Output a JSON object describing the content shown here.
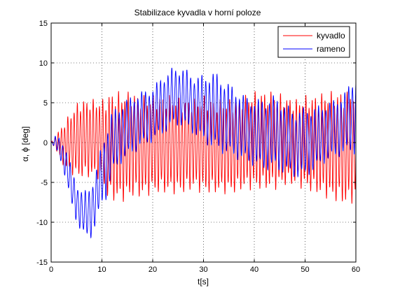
{
  "chart_data": {
    "type": "line",
    "title": "Stabilizace kyvadla v horní poloze",
    "xlabel": "t[s]",
    "ylabel": "α, ϕ [deg]",
    "xlim": [
      0,
      60
    ],
    "ylim": [
      -15,
      15
    ],
    "xticks": [
      0,
      10,
      20,
      30,
      40,
      50,
      60
    ],
    "yticks": [
      -15,
      -10,
      -5,
      0,
      5,
      10,
      15
    ],
    "grid": true,
    "legend_position": "top-right",
    "series": [
      {
        "name": "kyvadlo",
        "color": "#ff0000",
        "envelope": {
          "t": [
            0,
            1,
            2,
            3,
            4,
            5,
            6,
            7,
            8,
            9,
            10,
            11,
            12,
            14,
            16,
            18,
            20,
            22,
            24,
            26,
            28,
            30,
            32,
            34,
            36,
            38,
            40,
            42,
            44,
            46,
            48,
            50,
            52,
            54,
            56,
            58,
            60
          ],
          "upper": [
            0,
            1,
            2,
            3,
            4,
            5,
            5.5,
            5.5,
            5.5,
            5.5,
            5.5,
            6,
            6.5,
            6.5,
            6.5,
            6,
            6,
            6,
            6,
            5.5,
            5.5,
            6,
            5.5,
            5.5,
            5.5,
            6,
            6.5,
            6.5,
            6.5,
            6,
            5.5,
            6,
            6,
            6.5,
            6.5,
            6.5,
            7
          ],
          "lower": [
            0,
            -1,
            -2.5,
            -3.5,
            -4,
            -4.5,
            -4.5,
            -4.5,
            -4.5,
            -4.5,
            -5,
            -7,
            -7.5,
            -7.5,
            -7,
            -7,
            -6.5,
            -6.5,
            -6.5,
            -6.5,
            -6,
            -6.5,
            -6.5,
            -6.5,
            -6.5,
            -6,
            -6,
            -6,
            -6,
            -5.5,
            -5.5,
            -6,
            -6.5,
            -7,
            -7.5,
            -8,
            -7.5
          ],
          "mid": [
            0,
            0,
            0,
            0,
            0,
            0,
            0,
            0,
            0,
            0,
            0,
            -1,
            -2.5,
            -2.5,
            -2,
            -1.5,
            -1,
            -0.5,
            -0.5,
            -0.5,
            -0.5,
            0,
            -0.5,
            -1,
            -1.5,
            -1.5,
            -1.5,
            -1.5,
            -1,
            -0.5,
            -1.5,
            -2.5,
            -3,
            -2.5,
            -2,
            -1.5,
            -1
          ]
        }
      },
      {
        "name": "rameno",
        "color": "#0000ff",
        "envelope": {
          "t": [
            0,
            1,
            2,
            3,
            4,
            5,
            6,
            7,
            8,
            9,
            10,
            11,
            12,
            14,
            16,
            18,
            20,
            22,
            24,
            26,
            28,
            30,
            32,
            34,
            36,
            38,
            40,
            42,
            44,
            46,
            48,
            50,
            52,
            54,
            56,
            58,
            60
          ],
          "upper": [
            0,
            1,
            0.5,
            -1,
            -3,
            -5,
            -6,
            -6,
            -5,
            -3,
            0,
            2,
            4,
            5,
            6,
            6.5,
            7,
            8.5,
            9.5,
            9.5,
            8.5,
            8.5,
            9,
            8,
            7,
            6,
            5.5,
            5.5,
            6,
            5,
            4,
            4.5,
            4.5,
            5,
            5.5,
            6.5,
            9
          ],
          "lower": [
            0,
            -1,
            -2.5,
            -5,
            -8,
            -10,
            -11.5,
            -12,
            -12,
            -10,
            -8,
            -7,
            -4,
            -2.5,
            -1.5,
            -0.5,
            0,
            1,
            2,
            2,
            1,
            0,
            -1,
            -1.5,
            -2,
            -2.5,
            -3,
            -3.5,
            -3.5,
            -4,
            -4.5,
            -4.5,
            -3.5,
            -2.5,
            -2,
            -1.5,
            -1.5
          ],
          "mid": [
            0,
            0,
            -1,
            -3,
            -5.5,
            -7.5,
            -9,
            -9,
            -8.5,
            -6.5,
            -4,
            -2.5,
            0,
            1.5,
            2.5,
            3,
            3.5,
            4.5,
            5.5,
            5.5,
            5,
            4.5,
            4,
            3,
            2.5,
            2,
            1.5,
            1,
            1,
            0.5,
            0,
            0,
            0.5,
            1.5,
            2,
            2.5,
            3.5
          ]
        }
      }
    ]
  }
}
